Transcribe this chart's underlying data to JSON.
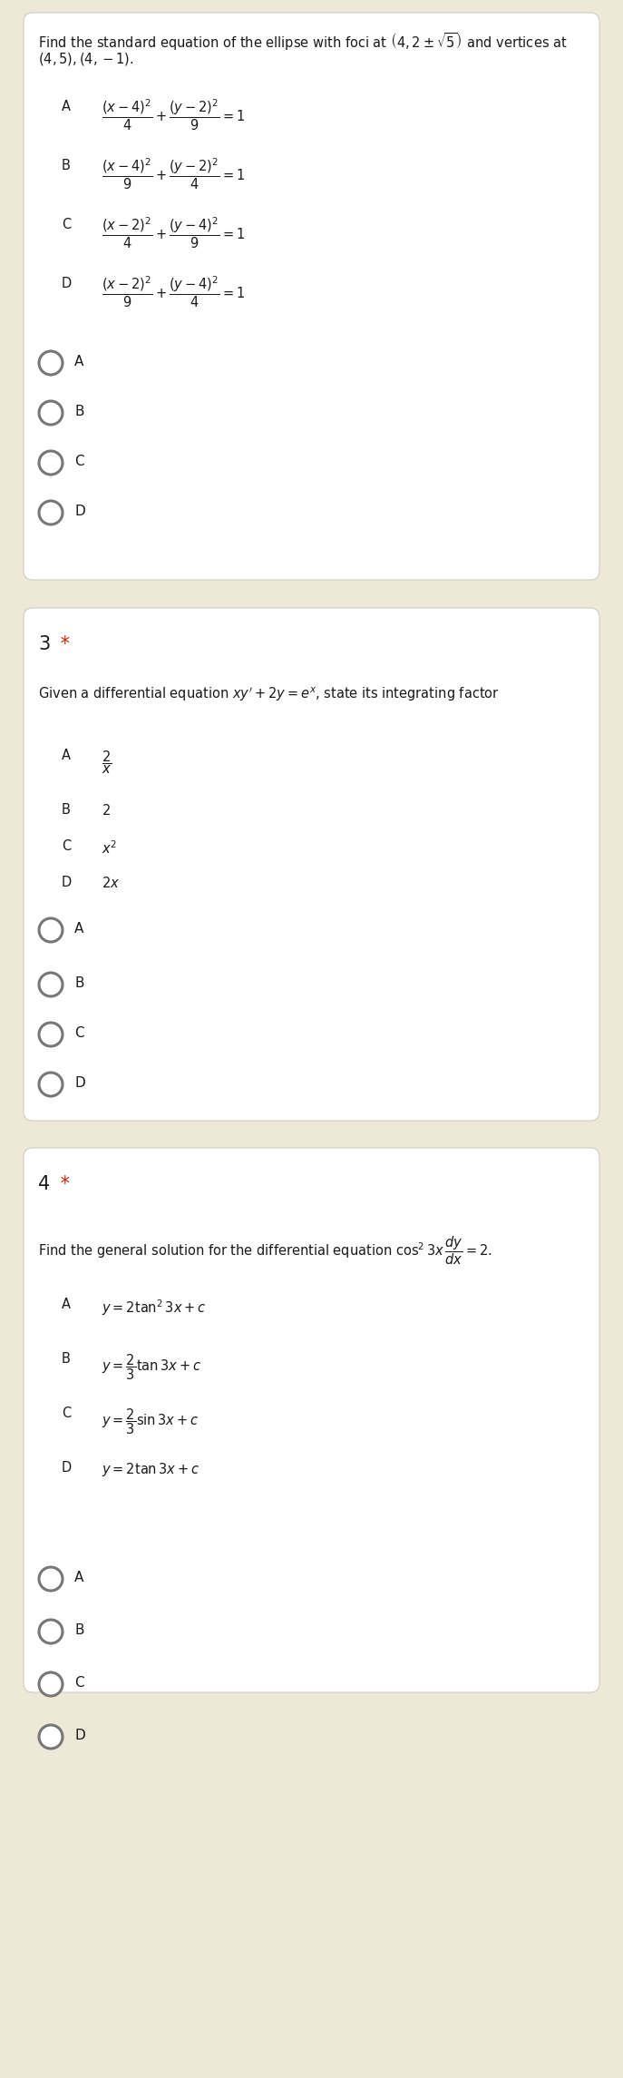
{
  "bg_color": "#ede8d8",
  "card_color": "#ffffff",
  "text_color": "#1a1a1a",
  "star_color": "#cc2200",
  "radio_color": "#777777",
  "q1_line1": "Find the standard equation of the ellipse with foci at $\\left(4,2\\pm\\sqrt{5}\\right)$ and vertices at",
  "q1_line2": "$(4,5),(4,-1)$.",
  "q1_opts": [
    [
      "A",
      "$\\dfrac{(x-4)^2}{4}+\\dfrac{(y-2)^2}{9}=1$"
    ],
    [
      "B",
      "$\\dfrac{(x-4)^2}{9}+\\dfrac{(y-2)^2}{4}=1$"
    ],
    [
      "C",
      "$\\dfrac{(x-2)^2}{4}+\\dfrac{(y-4)^2}{9}=1$"
    ],
    [
      "D",
      "$\\dfrac{(x-2)^2}{9}+\\dfrac{(y-4)^2}{4}=1$"
    ]
  ],
  "q1_radios": [
    "A",
    "B",
    "C",
    "D"
  ],
  "q3_number": "3",
  "q3_line1": "Given a differential equation $xy'+2y=e^x$, state its integrating factor",
  "q3_opts": [
    [
      "A",
      "$\\dfrac{2}{x}$"
    ],
    [
      "B",
      "$2$"
    ],
    [
      "C",
      "$x^2$"
    ],
    [
      "D",
      "$2x$"
    ]
  ],
  "q3_radios": [
    "A",
    "B",
    "C",
    "D"
  ],
  "q4_number": "4",
  "q4_line1": "Find the general solution for the differential equation $\\cos^2 3x\\,\\dfrac{dy}{dx}=2$.",
  "q4_opts": [
    [
      "A",
      "$y=2\\tan^2 3x+c$"
    ],
    [
      "B",
      "$y=\\dfrac{2}{3}\\tan 3x+c$"
    ],
    [
      "C",
      "$y=\\dfrac{2}{3}\\sin 3x+c$"
    ],
    [
      "D",
      "$y=2\\tan 3x+c$"
    ]
  ],
  "q4_radios": [
    "A",
    "B",
    "C",
    "D"
  ]
}
